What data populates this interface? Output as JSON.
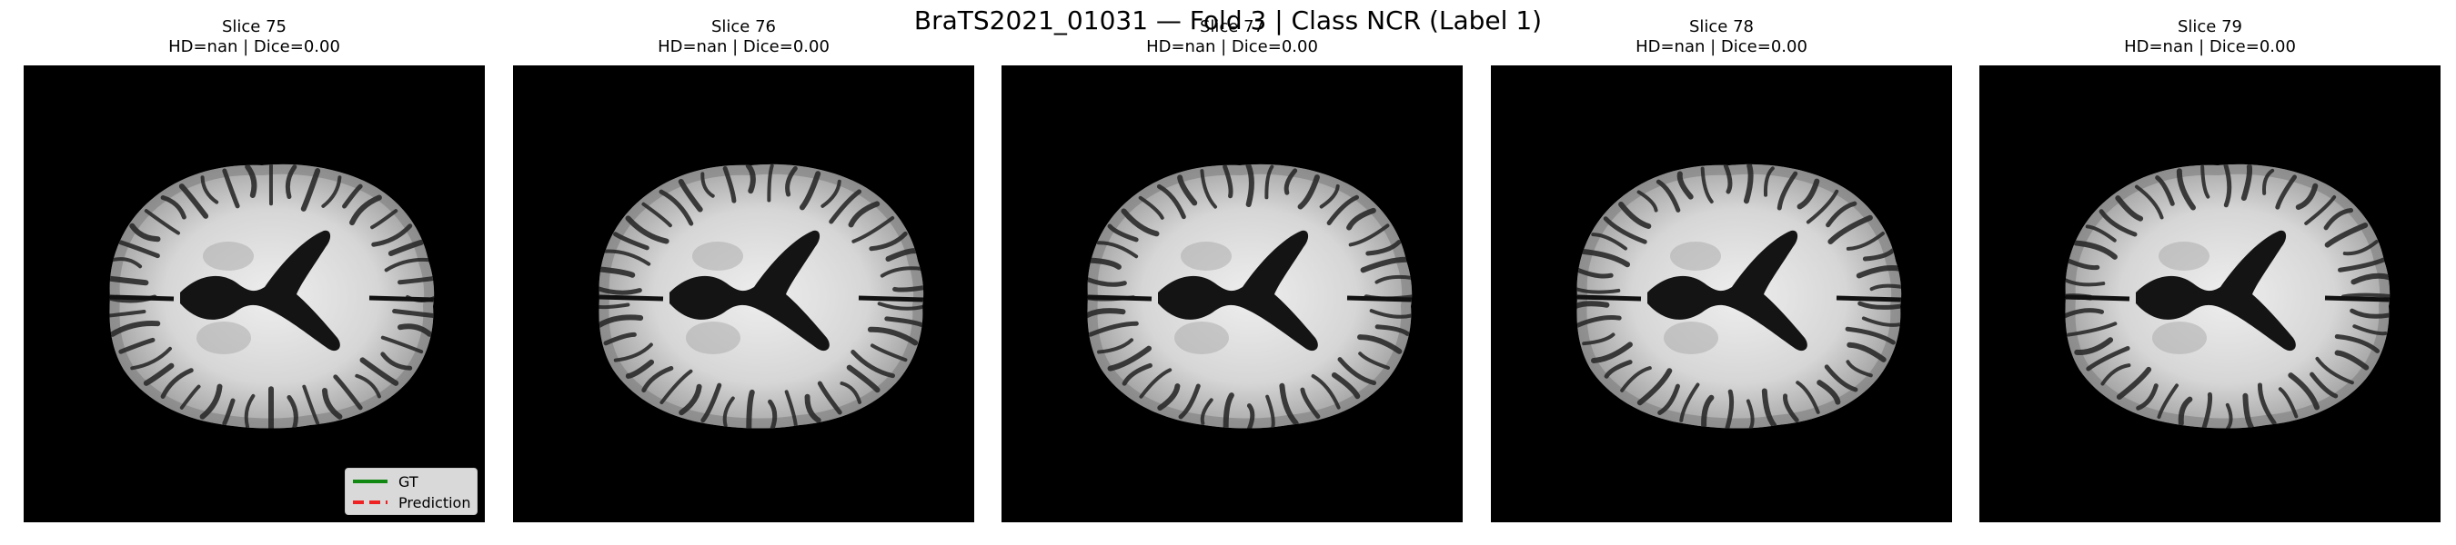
{
  "figure": {
    "suptitle": "BraTS2021_01031 — Fold 3 | Class NCR (Label 1)"
  },
  "panels": [
    {
      "title": "Slice 75",
      "metrics": "HD=nan | Dice=0.00"
    },
    {
      "title": "Slice 76",
      "metrics": "HD=nan | Dice=0.00"
    },
    {
      "title": "Slice 77",
      "metrics": "HD=nan | Dice=0.00"
    },
    {
      "title": "Slice 78",
      "metrics": "HD=nan | Dice=0.00"
    },
    {
      "title": "Slice 79",
      "metrics": "HD=nan | Dice=0.00"
    }
  ],
  "legend": {
    "gt_label": "GT",
    "prediction_label": "Prediction",
    "gt_color": "#118811",
    "prediction_color": "#ee2222"
  }
}
